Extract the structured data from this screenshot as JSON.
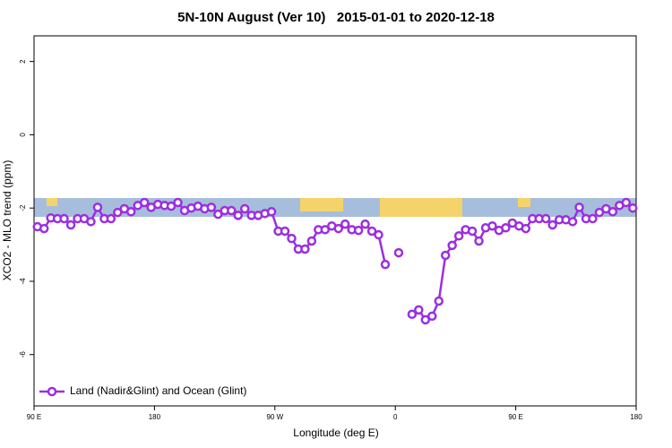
{
  "chart_data": {
    "type": "line",
    "title": "5N-10N August (Ver 10)   2015-01-01 to 2020-12-18",
    "xlabel": "Longitude (deg E)",
    "ylabel": "XCO2 - MLO trend (ppm)",
    "x": [
      92.5,
      97.5,
      102.5,
      107.5,
      112.5,
      117.5,
      122.5,
      127.5,
      132.5,
      137.5,
      142.5,
      147.5,
      152.5,
      157.5,
      162.5,
      167.5,
      172.5,
      177.5,
      182.5,
      187.5,
      192.5,
      197.5,
      202.5,
      207.5,
      212.5,
      217.5,
      222.5,
      227.5,
      232.5,
      237.5,
      242.5,
      247.5,
      252.5,
      257.5,
      262.5,
      267.5,
      272.5,
      277.5,
      282.5,
      287.5,
      292.5,
      297.5,
      302.5,
      307.5,
      312.5,
      317.5,
      322.5,
      327.5,
      332.5,
      337.5,
      342.5,
      347.5,
      352.5,
      357.5,
      362.5,
      367.5,
      372.5,
      377.5,
      382.5,
      387.5,
      392.5,
      397.5,
      402.5,
      407.5,
      412.5,
      417.5,
      422.5,
      427.5,
      432.5,
      437.5,
      442.5,
      447.5,
      452.5,
      457.5,
      462.5,
      467.5,
      472.5,
      477.5,
      482.5,
      487.5,
      492.5,
      497.5,
      502.5,
      507.5,
      512.5,
      517.5,
      522.5,
      527.5,
      532.5,
      537.5
    ],
    "series": [
      {
        "name": "Land (Nadir&Glint) and Ocean (Glint)",
        "color": "#9b2fe0",
        "values": [
          -2.51,
          -2.56,
          -2.27,
          -2.29,
          -2.29,
          -2.46,
          -2.29,
          -2.29,
          -2.37,
          -1.98,
          -2.29,
          -2.29,
          -2.12,
          -2.02,
          -2.1,
          -1.93,
          -1.85,
          -1.98,
          -1.9,
          -1.93,
          -1.95,
          -1.85,
          -2.07,
          -2.0,
          -1.95,
          -2.02,
          -1.98,
          -2.17,
          -2.07,
          -2.07,
          -2.2,
          -2.02,
          -2.2,
          -2.2,
          -2.15,
          -2.1,
          -2.63,
          -2.63,
          -2.83,
          -3.12,
          -3.12,
          -2.9,
          -2.59,
          -2.59,
          -2.49,
          -2.56,
          -2.44,
          -2.59,
          -2.61,
          -2.44,
          -2.63,
          -2.73,
          -3.54,
          null,
          -3.22,
          null,
          -4.9,
          -4.78,
          -5.05,
          -4.95,
          -4.54,
          -3.29,
          -3.02,
          -2.76,
          -2.59,
          -2.63,
          -2.9,
          -2.54,
          -2.49,
          -2.61,
          -2.54,
          -2.41,
          -2.49,
          -2.56,
          -2.29,
          -2.29,
          -2.29,
          -2.46,
          -2.32,
          -2.32,
          -2.37,
          -1.98,
          -2.29,
          -2.29,
          -2.12,
          -2.02,
          -2.1,
          -1.93,
          -1.85,
          -2.0
        ]
      }
    ],
    "xlim": [
      90,
      540
    ],
    "xticks": [
      {
        "value": 90,
        "label": "90 E"
      },
      180,
      {
        "value": 270,
        "label": "90 W"
      },
      {
        "value": 360,
        "label": "0"
      },
      {
        "value": 450,
        "label": "90 E"
      },
      {
        "value": 540,
        "label": "180"
      }
    ],
    "ylim": [
      -7.4,
      2.7
    ],
    "yticks": [
      2,
      0,
      -2,
      -4,
      -6
    ],
    "legend": "bottom-left"
  }
}
